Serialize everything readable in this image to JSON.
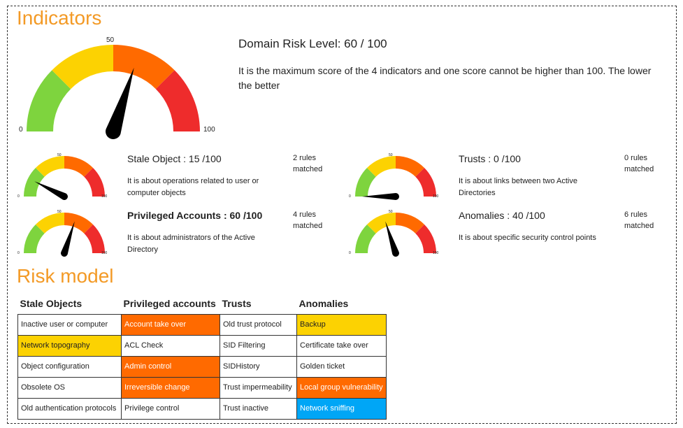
{
  "indicators_title": "Indicators",
  "main_gauge": {
    "score": 60,
    "label_min": "0",
    "label_mid": "50",
    "label_max": "100"
  },
  "domain": {
    "title": "Domain Risk Level: 60 / 100",
    "description": "It is the maximum score of the 4 indicators and one score cannot be higher than 100. The lower the better"
  },
  "small_gauge_labels": {
    "min": "0",
    "mid": "50",
    "max": "100"
  },
  "indicators": [
    {
      "title": "Stale Object : 15 /100",
      "score": 15,
      "description": "It is about operations related to user or computer objects",
      "rules": "2 rules matched"
    },
    {
      "title": "Trusts : 0 /100",
      "score": 0,
      "description": "It is about links between two Active Directories",
      "rules": "0 rules matched"
    },
    {
      "title": "Privileged Accounts : 60 /100",
      "score": 60,
      "description": "It is about administrators of the Active Directory",
      "rules": "4 rules matched"
    },
    {
      "title": "Anomalies : 40 /100",
      "score": 40,
      "description": "It is about specific security control points",
      "rules": "6 rules matched"
    }
  ],
  "risk_model_title": "Risk model",
  "colors": {
    "green": "#7ed43e",
    "yellow": "#fcd202",
    "orange": "#ff6a00",
    "red": "#ee2c2c",
    "blue": "#00a6f6",
    "title": "#f39a26"
  },
  "risk_model": {
    "headers": [
      "Stale Objects",
      "Privileged accounts",
      "Trusts",
      "Anomalies"
    ],
    "rows": [
      [
        {
          "text": "Inactive user or computer",
          "color": ""
        },
        {
          "text": "Account take over",
          "color": "orange"
        },
        {
          "text": "Old trust protocol",
          "color": ""
        },
        {
          "text": "Backup",
          "color": "yellow"
        }
      ],
      [
        {
          "text": "Network topography",
          "color": "yellow"
        },
        {
          "text": "ACL Check",
          "color": ""
        },
        {
          "text": "SID Filtering",
          "color": ""
        },
        {
          "text": "Certificate take over",
          "color": ""
        }
      ],
      [
        {
          "text": "Object configuration",
          "color": ""
        },
        {
          "text": "Admin control",
          "color": "orange"
        },
        {
          "text": "SIDHistory",
          "color": ""
        },
        {
          "text": "Golden ticket",
          "color": ""
        }
      ],
      [
        {
          "text": "Obsolete OS",
          "color": ""
        },
        {
          "text": "Irreversible change",
          "color": "orange"
        },
        {
          "text": "Trust impermeability",
          "color": ""
        },
        {
          "text": "Local group vulnerability",
          "color": "orange"
        }
      ],
      [
        {
          "text": "Old authentication protocols",
          "color": ""
        },
        {
          "text": "Privilege control",
          "color": ""
        },
        {
          "text": "Trust inactive",
          "color": ""
        },
        {
          "text": "Network sniffing",
          "color": "blue"
        }
      ]
    ]
  }
}
